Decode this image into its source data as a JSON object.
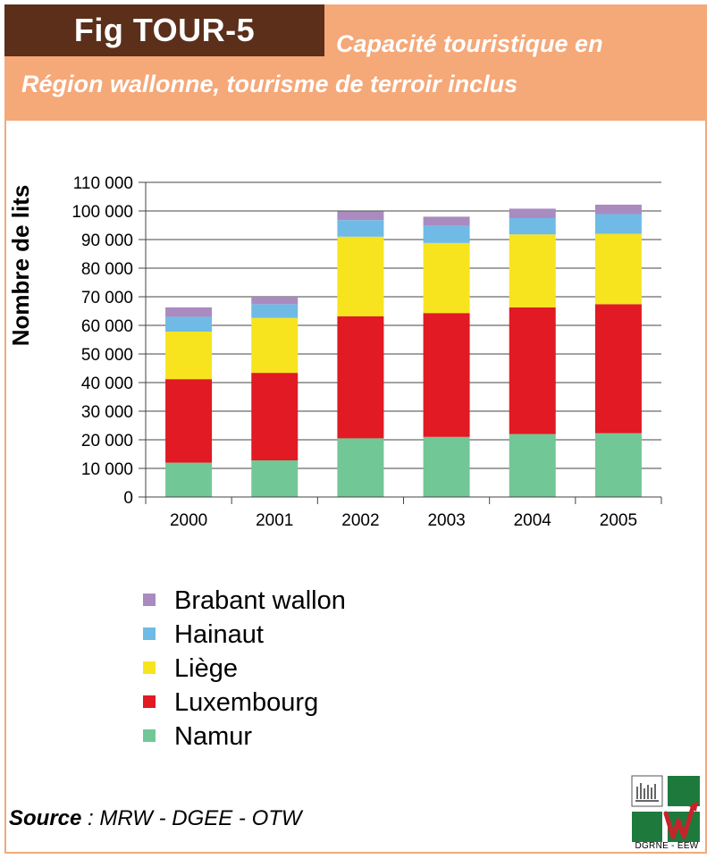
{
  "figure": {
    "tag": "Fig TOUR-5",
    "title_line1": "Capacité touristique en",
    "title_line2": "Région wallonne, tourisme de terroir inclus"
  },
  "source": {
    "label": "Source",
    "text": " : MRW - DGEE - OTW"
  },
  "logo": {
    "caption": "DGRNE - EEW"
  },
  "colors": {
    "Brabant wallon": "#a98bc0",
    "Hainaut": "#6fbbe6",
    "Liège": "#f7e41f",
    "Luxembourg": "#e11a23",
    "Namur": "#72c797",
    "header": "#f5a878",
    "tag": "#5b2f1a"
  },
  "chart_data": {
    "type": "bar",
    "stacked": true,
    "title": "Capacité touristique en Région wallonne, tourisme de terroir inclus",
    "xlabel": "",
    "ylabel": "Nombre de lits",
    "ylim": [
      0,
      110000
    ],
    "yticks": [
      0,
      10000,
      20000,
      30000,
      40000,
      50000,
      60000,
      70000,
      80000,
      90000,
      100000,
      110000
    ],
    "ytick_labels": [
      "0",
      "10 000",
      "20 000",
      "30 000",
      "40 000",
      "50 000",
      "60 000",
      "70 000",
      "80 000",
      "90 000",
      "100 000",
      "110 000"
    ],
    "grid": true,
    "categories": [
      "2000",
      "2001",
      "2002",
      "2003",
      "2004",
      "2005"
    ],
    "series": [
      {
        "name": "Namur",
        "values": [
          12000,
          12800,
          20500,
          21000,
          22000,
          22300
        ]
      },
      {
        "name": "Luxembourg",
        "values": [
          29200,
          30600,
          42700,
          43300,
          44300,
          45100
        ]
      },
      {
        "name": "Liège",
        "values": [
          16600,
          19200,
          27800,
          24500,
          25500,
          24600
        ]
      },
      {
        "name": "Hainaut",
        "values": [
          5200,
          4800,
          5800,
          6000,
          5700,
          6900
        ]
      },
      {
        "name": "Brabant wallon",
        "values": [
          3300,
          2600,
          3000,
          3200,
          3300,
          3300
        ]
      }
    ],
    "legend_order": [
      "Brabant wallon",
      "Hainaut",
      "Liège",
      "Luxembourg",
      "Namur"
    ],
    "legend_position": "bottom-left"
  }
}
